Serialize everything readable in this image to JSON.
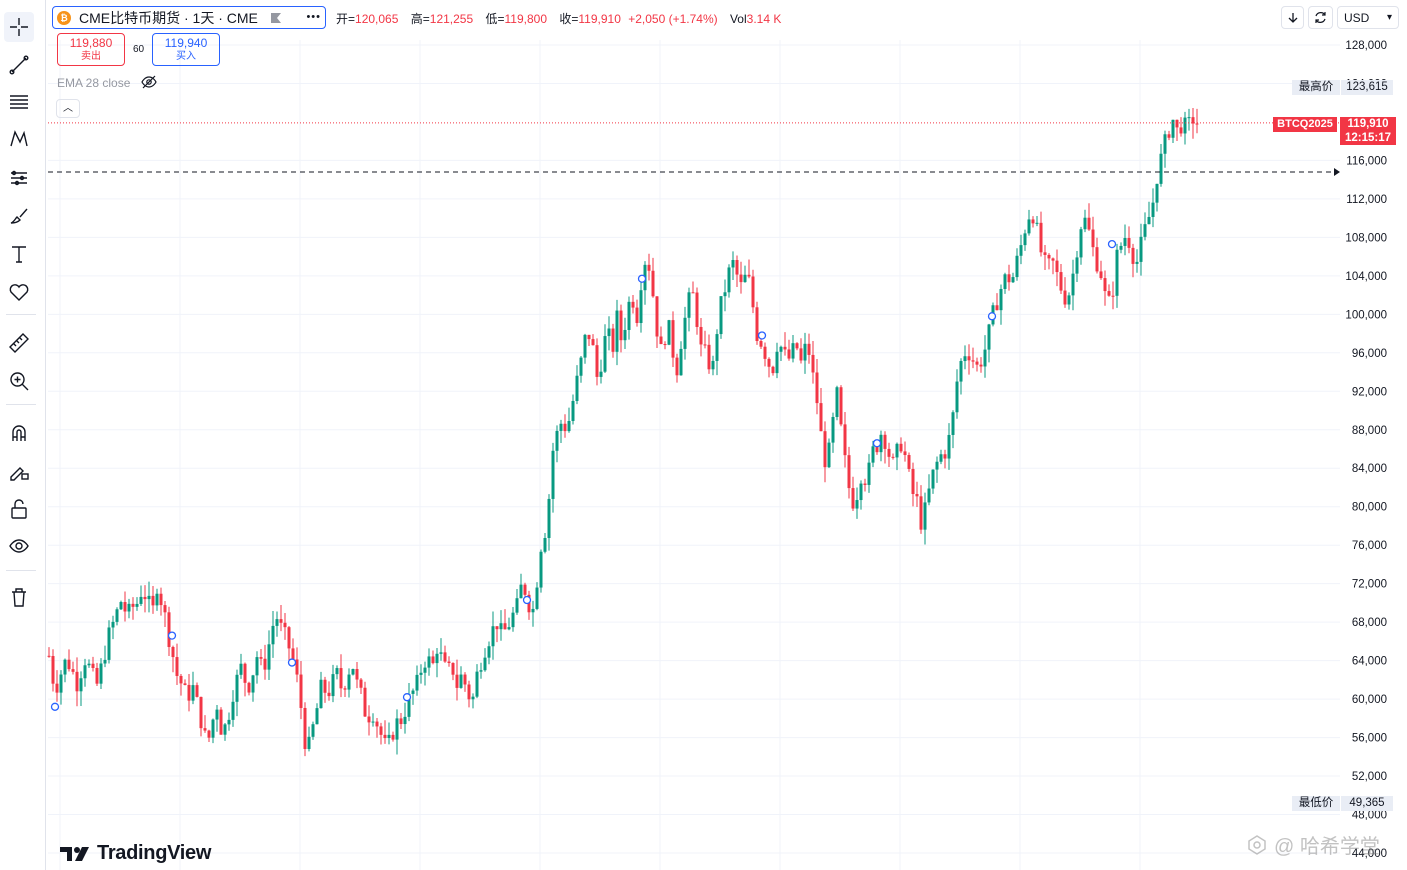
{
  "header": {
    "coin_glyph": "₿",
    "symbol_title": "CME比特币期货 · 1天 · CME",
    "more_label": "•••",
    "ohlc": [
      {
        "k": "开=",
        "v": "120,065"
      },
      {
        "k": "高=",
        "v": "121,255"
      },
      {
        "k": "低=",
        "v": "119,800"
      },
      {
        "k": "收=",
        "v": "119,910"
      }
    ],
    "change": "+2,050 (+1.74%)",
    "vol_label": "Vol",
    "vol_value": "3.14 K"
  },
  "trade": {
    "sell_price": "119,880",
    "sell_label": "卖出",
    "spread": "60",
    "buy_price": "119,940",
    "buy_label": "买入"
  },
  "indicator": {
    "label": "EMA 28 close"
  },
  "collapse_glyph": "︿",
  "controls": {
    "currency": "USD",
    "currency_caret": "▾"
  },
  "price_axis": {
    "ticks": [
      "128,000",
      "124,000",
      "116,000",
      "112,000",
      "108,000",
      "104,000",
      "100,000",
      "96,000",
      "92,000",
      "88,000",
      "84,000",
      "80,000",
      "76,000",
      "72,000",
      "68,000",
      "64,000",
      "60,000",
      "56,000",
      "52,000",
      "48,000",
      "44,000"
    ],
    "high_label": "最高价",
    "high_value": "123,615",
    "low_label": "最低价",
    "low_value": "49,365",
    "symbol_tag": "BTCQ2025",
    "last_price": "119,910",
    "countdown": "12:15:17"
  },
  "colors": {
    "up": "#089981",
    "down": "#f23645",
    "accent": "#2962ff"
  },
  "branding": {
    "logo_text": "TradingView",
    "watermark": "@ 哈希学堂"
  },
  "chart_data": {
    "type": "candlestick",
    "title": "CME比特币期货 · 1天 · CME",
    "ylim": [
      44000,
      128000
    ],
    "y_ticks": [
      128000,
      124000,
      116000,
      112000,
      108000,
      104000,
      100000,
      96000,
      92000,
      88000,
      84000,
      80000,
      76000,
      72000,
      68000,
      64000,
      60000,
      56000,
      52000,
      48000,
      44000
    ],
    "last": {
      "open": 120065,
      "high": 121255,
      "low": 119800,
      "close": 119910
    },
    "period_high": 123615,
    "period_low": 49365,
    "dashed_level": 114800,
    "close_path": [
      [
        0,
        64500
      ],
      [
        6,
        61000
      ],
      [
        11,
        62500
      ],
      [
        17,
        64000
      ],
      [
        22,
        63500
      ],
      [
        27,
        61500
      ],
      [
        32,
        63000
      ],
      [
        37,
        64500
      ],
      [
        42,
        62500
      ],
      [
        48,
        61500
      ],
      [
        53,
        63500
      ],
      [
        58,
        66000
      ],
      [
        63,
        67500
      ],
      [
        68,
        69000
      ],
      [
        73,
        70500
      ],
      [
        78,
        68500
      ],
      [
        83,
        69500
      ],
      [
        88,
        70000
      ],
      [
        93,
        71500
      ],
      [
        98,
        70500
      ],
      [
        103,
        68500
      ],
      [
        108,
        72000
      ],
      [
        113,
        70000
      ],
      [
        118,
        67500
      ],
      [
        123,
        65000
      ],
      [
        128,
        62500
      ],
      [
        133,
        61500
      ],
      [
        138,
        60000
      ],
      [
        143,
        61500
      ],
      [
        148,
        59500
      ],
      [
        153,
        57500
      ],
      [
        158,
        55000
      ],
      [
        163,
        57500
      ],
      [
        168,
        59500
      ],
      [
        173,
        56500
      ],
      [
        178,
        57500
      ],
      [
        183,
        60500
      ],
      [
        188,
        62000
      ],
      [
        193,
        63500
      ],
      [
        198,
        61000
      ],
      [
        203,
        62500
      ],
      [
        208,
        64500
      ],
      [
        213,
        63000
      ],
      [
        218,
        64500
      ],
      [
        223,
        67500
      ],
      [
        228,
        68500
      ],
      [
        233,
        67000
      ],
      [
        238,
        66000
      ],
      [
        243,
        64500
      ],
      [
        248,
        62000
      ],
      [
        253,
        58500
      ],
      [
        258,
        54000
      ],
      [
        263,
        56500
      ],
      [
        268,
        59000
      ],
      [
        273,
        61500
      ],
      [
        278,
        60500
      ],
      [
        283,
        61500
      ],
      [
        288,
        62500
      ],
      [
        293,
        61000
      ],
      [
        298,
        62500
      ],
      [
        303,
        64000
      ],
      [
        308,
        61500
      ],
      [
        313,
        60000
      ],
      [
        318,
        58000
      ],
      [
        323,
        59000
      ],
      [
        328,
        57500
      ],
      [
        333,
        56000
      ],
      [
        338,
        54500
      ],
      [
        343,
        56500
      ],
      [
        348,
        57500
      ],
      [
        353,
        58000
      ],
      [
        358,
        59500
      ],
      [
        363,
        60500
      ],
      [
        368,
        61500
      ],
      [
        373,
        63500
      ],
      [
        378,
        64500
      ],
      [
        383,
        63000
      ],
      [
        388,
        65500
      ],
      [
        393,
        64000
      ],
      [
        398,
        62500
      ],
      [
        403,
        63500
      ],
      [
        408,
        61500
      ],
      [
        413,
        62500
      ],
      [
        418,
        61000
      ],
      [
        423,
        59500
      ],
      [
        428,
        62500
      ],
      [
        433,
        64500
      ],
      [
        438,
        66000
      ],
      [
        443,
        67000
      ],
      [
        448,
        68000
      ],
      [
        453,
        66500
      ],
      [
        458,
        67500
      ],
      [
        463,
        68500
      ],
      [
        468,
        69500
      ],
      [
        473,
        72000
      ],
      [
        478,
        71000
      ],
      [
        483,
        68500
      ],
      [
        488,
        72500
      ],
      [
        493,
        77000
      ],
      [
        498,
        78000
      ],
      [
        503,
        85500
      ],
      [
        508,
        87500
      ],
      [
        513,
        89000
      ],
      [
        518,
        88000
      ],
      [
        523,
        90500
      ],
      [
        528,
        93000
      ],
      [
        533,
        95500
      ],
      [
        538,
        98500
      ],
      [
        543,
        97000
      ],
      [
        548,
        93500
      ],
      [
        553,
        95500
      ],
      [
        558,
        98500
      ],
      [
        563,
        96000
      ],
      [
        568,
        99500
      ],
      [
        573,
        97000
      ],
      [
        578,
        100500
      ],
      [
        583,
        102000
      ],
      [
        588,
        100000
      ],
      [
        593,
        104500
      ],
      [
        598,
        106500
      ],
      [
        603,
        103000
      ],
      [
        608,
        98500
      ],
      [
        613,
        95500
      ],
      [
        618,
        99500
      ],
      [
        623,
        96500
      ],
      [
        628,
        94500
      ],
      [
        633,
        98000
      ],
      [
        638,
        100500
      ],
      [
        643,
        102500
      ],
      [
        648,
        99500
      ],
      [
        653,
        95500
      ],
      [
        658,
        96000
      ],
      [
        663,
        93500
      ],
      [
        668,
        98500
      ],
      [
        673,
        101500
      ],
      [
        678,
        103500
      ],
      [
        683,
        105500
      ],
      [
        688,
        104000
      ],
      [
        693,
        102500
      ],
      [
        698,
        104500
      ],
      [
        703,
        101500
      ],
      [
        708,
        98000
      ],
      [
        713,
        97000
      ],
      [
        718,
        95500
      ],
      [
        723,
        94000
      ],
      [
        728,
        97000
      ],
      [
        733,
        96500
      ],
      [
        738,
        95000
      ],
      [
        743,
        96000
      ],
      [
        748,
        96500
      ],
      [
        753,
        94500
      ],
      [
        758,
        97500
      ],
      [
        763,
        94000
      ],
      [
        768,
        91000
      ],
      [
        773,
        86500
      ],
      [
        778,
        84000
      ],
      [
        783,
        88000
      ],
      [
        788,
        91500
      ],
      [
        793,
        87000
      ],
      [
        798,
        83000
      ],
      [
        803,
        80500
      ],
      [
        808,
        81500
      ],
      [
        813,
        84000
      ],
      [
        818,
        82500
      ],
      [
        823,
        85500
      ],
      [
        828,
        86500
      ],
      [
        833,
        88000
      ],
      [
        838,
        86500
      ],
      [
        843,
        84000
      ],
      [
        848,
        85500
      ],
      [
        853,
        87000
      ],
      [
        858,
        84000
      ],
      [
        863,
        81500
      ],
      [
        868,
        80500
      ],
      [
        873,
        78000
      ],
      [
        878,
        80500
      ],
      [
        883,
        83000
      ],
      [
        888,
        84500
      ],
      [
        893,
        85500
      ],
      [
        898,
        86000
      ],
      [
        903,
        88500
      ],
      [
        908,
        93000
      ],
      [
        913,
        95500
      ],
      [
        918,
        96500
      ],
      [
        923,
        95500
      ],
      [
        928,
        94500
      ],
      [
        933,
        95500
      ],
      [
        938,
        97000
      ],
      [
        943,
        99500
      ],
      [
        948,
        101500
      ],
      [
        953,
        103000
      ],
      [
        958,
        104000
      ],
      [
        963,
        103500
      ],
      [
        968,
        105500
      ],
      [
        973,
        107500
      ],
      [
        978,
        110000
      ],
      [
        983,
        111000
      ],
      [
        988,
        108500
      ],
      [
        993,
        106000
      ],
      [
        998,
        104500
      ],
      [
        1003,
        105500
      ],
      [
        1008,
        104000
      ],
      [
        1013,
        102500
      ],
      [
        1018,
        101500
      ],
      [
        1023,
        103500
      ],
      [
        1028,
        107000
      ],
      [
        1033,
        110000
      ],
      [
        1038,
        109500
      ],
      [
        1043,
        107000
      ],
      [
        1048,
        105500
      ],
      [
        1053,
        104000
      ],
      [
        1058,
        100500
      ],
      [
        1063,
        102000
      ],
      [
        1068,
        106000
      ],
      [
        1073,
        107500
      ],
      [
        1078,
        108500
      ],
      [
        1083,
        106500
      ],
      [
        1088,
        105500
      ],
      [
        1093,
        107500
      ],
      [
        1098,
        109500
      ],
      [
        1103,
        111000
      ],
      [
        1108,
        114500
      ],
      [
        1113,
        116500
      ],
      [
        1118,
        118500
      ],
      [
        1123,
        120500
      ],
      [
        1128,
        119000
      ],
      [
        1133,
        120000
      ],
      [
        1138,
        119000
      ],
      [
        1143,
        120500
      ],
      [
        1148,
        119910
      ]
    ],
    "markers": [
      [
        6,
        59200
      ],
      [
        123,
        66600
      ],
      [
        243,
        63800
      ],
      [
        358,
        60200
      ],
      [
        478,
        70300
      ],
      [
        593,
        103700
      ],
      [
        713,
        97800
      ],
      [
        828,
        86600
      ],
      [
        943,
        99800
      ],
      [
        1063,
        107300
      ]
    ]
  }
}
